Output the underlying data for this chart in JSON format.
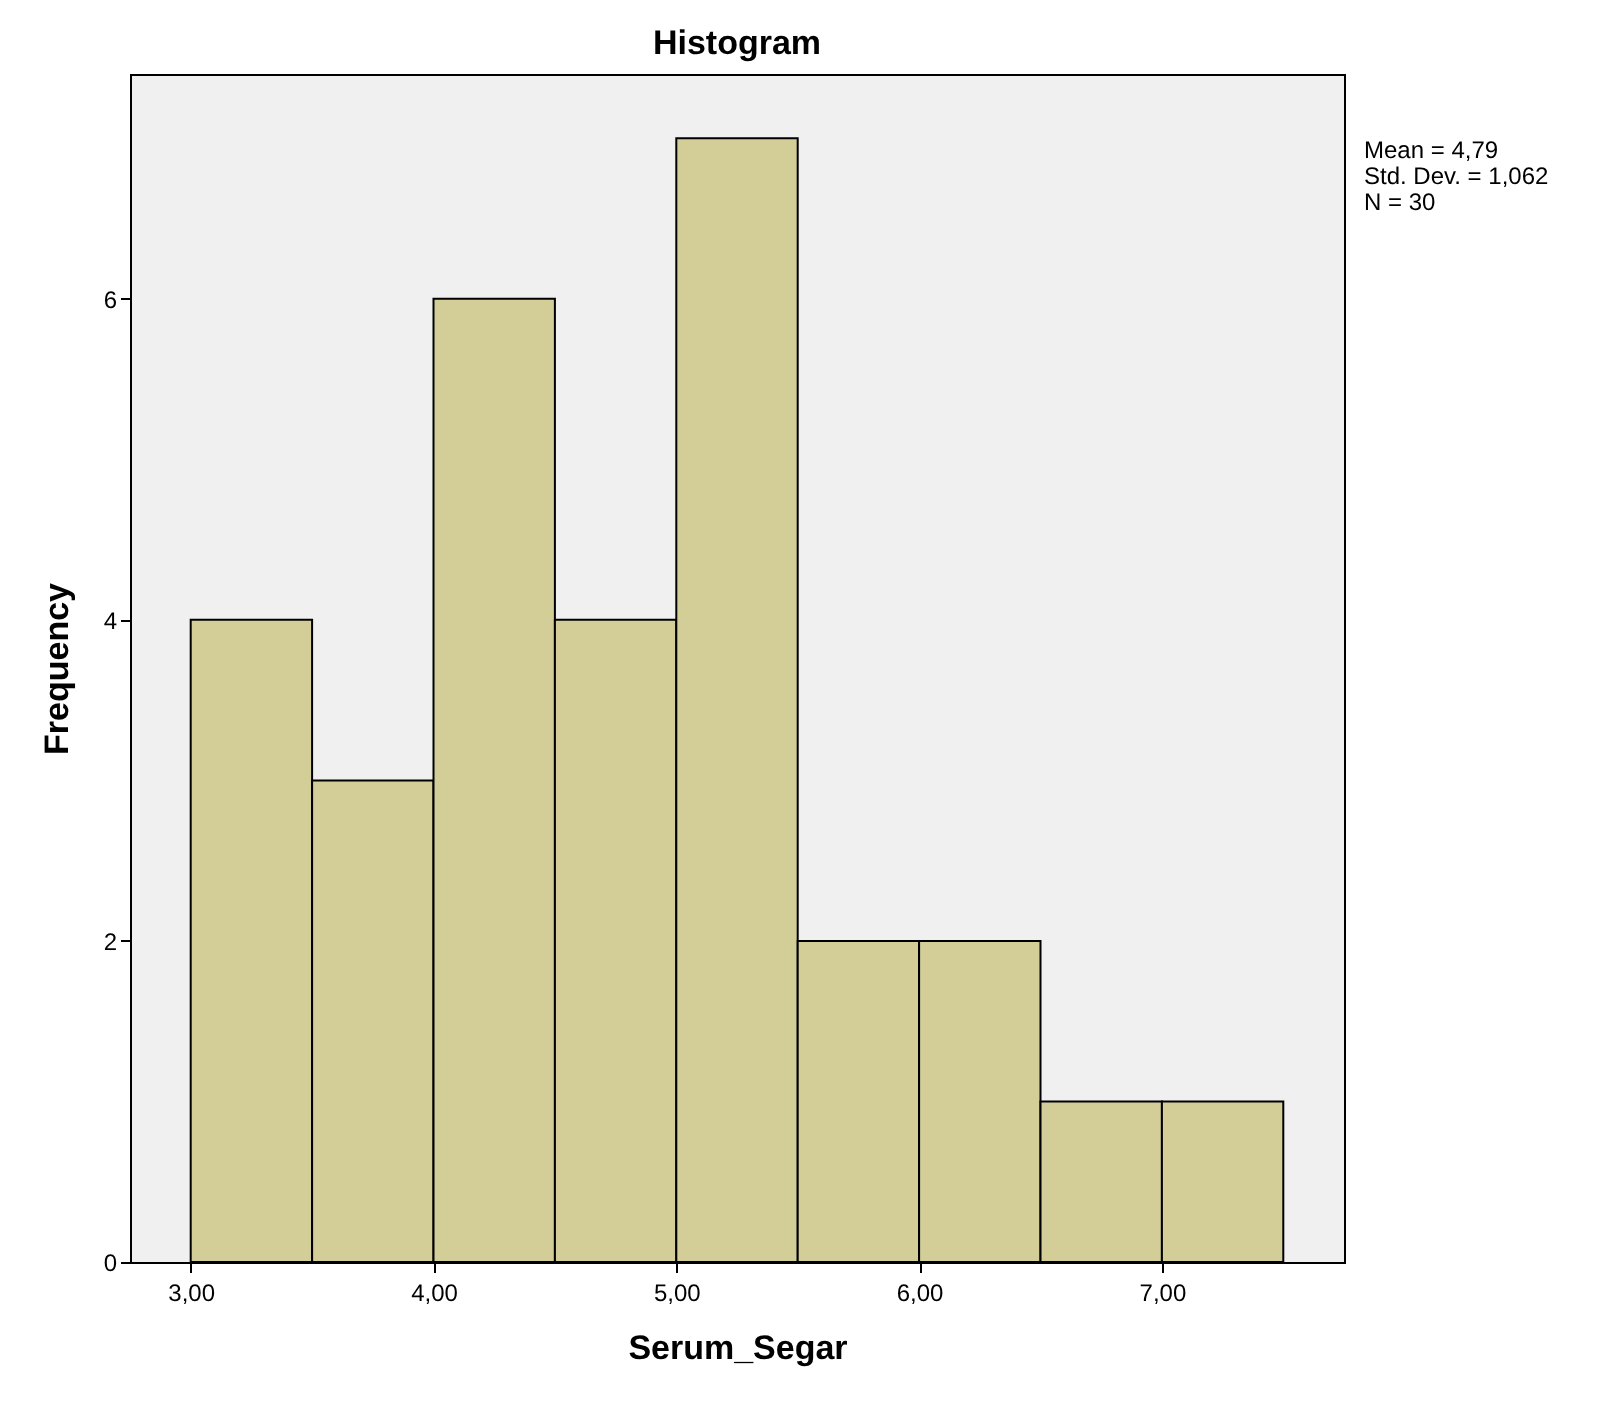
{
  "chart_data": {
    "type": "histogram",
    "title": "Histogram",
    "xlabel": "Serum_Segar",
    "ylabel": "Frequency",
    "bins": [
      3.0,
      3.5,
      4.0,
      4.5,
      5.0,
      5.5,
      6.0,
      6.5,
      7.0,
      7.5
    ],
    "values": [
      4,
      3,
      6,
      4,
      7,
      2,
      2,
      1,
      1
    ],
    "color": "#d3ce97",
    "xlim": [
      2.75,
      7.75
    ],
    "xticks": [
      {
        "value": 3,
        "label": "3,00"
      },
      {
        "value": 4,
        "label": "4,00"
      },
      {
        "value": 5,
        "label": "5,00"
      },
      {
        "value": 6,
        "label": "6,00"
      },
      {
        "value": 7,
        "label": "7,00"
      }
    ],
    "ylim": [
      0,
      7.4
    ],
    "yticks": [
      0,
      2,
      4,
      6
    ],
    "grid": false,
    "annotations": [
      "Mean = 4,79",
      "Std. Dev. = 1,062",
      "N = 30"
    ]
  }
}
